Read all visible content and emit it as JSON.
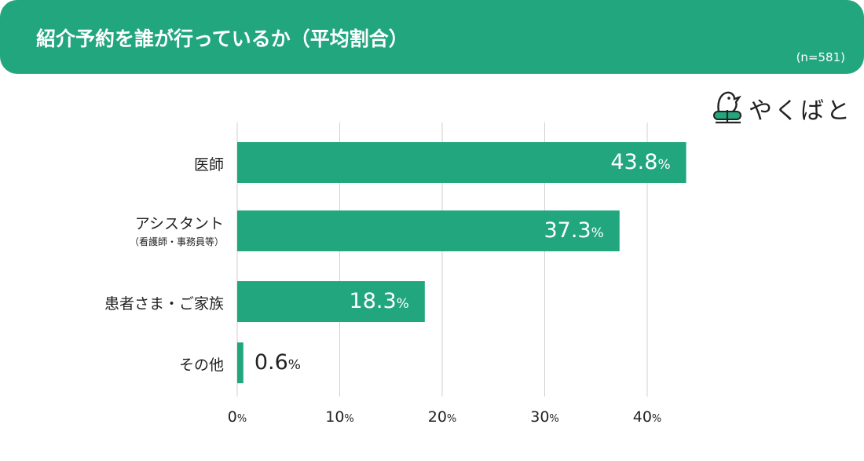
{
  "header": {
    "title": "紹介予約を誰が行っているか（平均割合）",
    "sample_size": "(n=581)"
  },
  "logo": {
    "text": "やくばと"
  },
  "colors": {
    "accent": "#22a67e",
    "grid": "#d0d0d0"
  },
  "chart_data": {
    "type": "bar",
    "orientation": "horizontal",
    "title": "紹介予約を誰が行っているか（平均割合）",
    "categories": [
      "医師",
      "アシスタント",
      "患者さま・ご家族",
      "その他"
    ],
    "category_sublabels": [
      "",
      "（看護師・事務員等）",
      "",
      ""
    ],
    "values": [
      43.8,
      37.3,
      18.3,
      0.6
    ],
    "value_labels": [
      "43.8",
      "37.3",
      "18.3",
      "0.6"
    ],
    "value_unit": "%",
    "xlim": [
      0,
      40
    ],
    "xticks": [
      "0",
      "10",
      "20",
      "30",
      "40"
    ],
    "tick_unit": "%",
    "grid": true,
    "legend": "none"
  }
}
